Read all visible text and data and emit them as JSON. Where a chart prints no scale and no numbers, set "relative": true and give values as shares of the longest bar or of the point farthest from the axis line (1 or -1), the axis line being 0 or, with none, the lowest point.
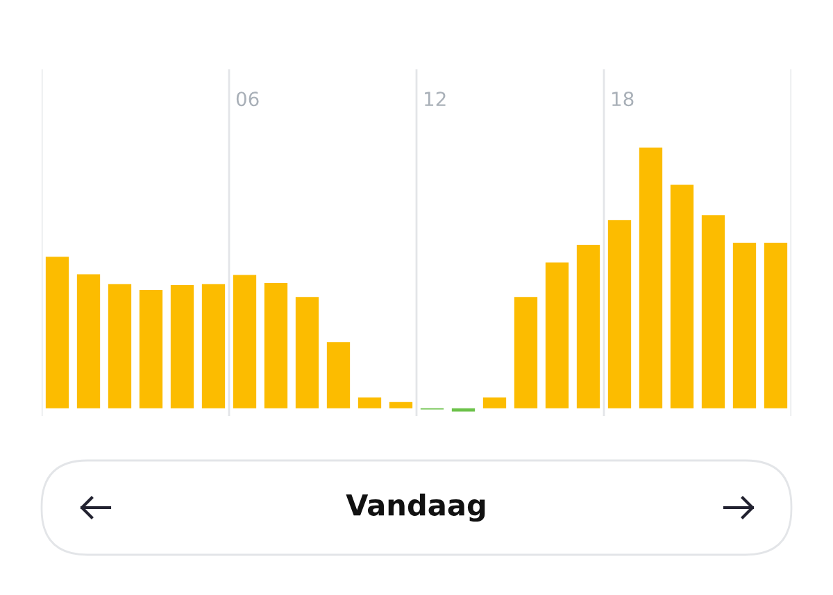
{
  "chart_data": {
    "type": "bar",
    "relative": true,
    "categories": [
      null,
      null,
      null,
      null,
      null,
      null,
      "06",
      null,
      null,
      null,
      null,
      null,
      "12",
      null,
      null,
      null,
      null,
      null,
      "18",
      null,
      null,
      null,
      null,
      null
    ],
    "values": [
      0.581,
      0.514,
      0.476,
      0.454,
      0.473,
      0.476,
      0.511,
      0.481,
      0.427,
      0.254,
      0.041,
      0.024,
      -0.005,
      -0.013,
      0.041,
      0.427,
      0.559,
      0.627,
      0.722,
      1,
      0.857,
      0.741,
      0.635,
      0.635
    ],
    "colors": [
      "#fcbc00",
      "#fcbc00",
      "#fcbc00",
      "#fcbc00",
      "#fcbc00",
      "#fcbc00",
      "#fcbc00",
      "#fcbc00",
      "#fcbc00",
      "#fcbc00",
      "#fcbc00",
      "#fcbc00",
      "#6cc24a",
      "#6cc24a",
      "#fcbc00",
      "#fcbc00",
      "#fcbc00",
      "#fcbc00",
      "#fcbc00",
      "#fcbc00",
      "#fcbc00",
      "#fcbc00",
      "#fcbc00",
      "#fcbc00"
    ],
    "grid": "x",
    "annotations": [
      "Vandaag"
    ]
  }
}
